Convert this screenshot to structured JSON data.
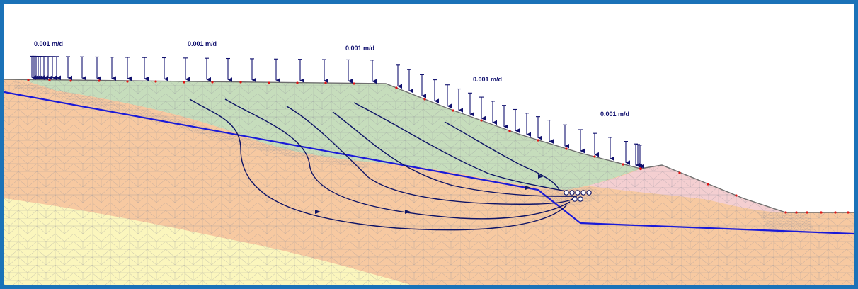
{
  "diagram": {
    "colors": {
      "frame": "#1a72b8",
      "soil_orange": "#f7c9a1",
      "soil_yellow": "#fbf6bd",
      "fill_green": "#c6ddbc",
      "fill_pink": "#f4cfd1",
      "mesh": "#8c8c96",
      "arrow": "#10106e",
      "water_table": "#1a1ad8",
      "flow_path": "#0e1466",
      "node_red": "#e01515"
    },
    "load_labels": [
      {
        "id": "load-1",
        "text": "0.001 m/d"
      },
      {
        "id": "load-2",
        "text": "0.001 m/d"
      },
      {
        "id": "load-3",
        "text": "0.001 m/d"
      },
      {
        "id": "load-4",
        "text": "0.001 m/d"
      },
      {
        "id": "load-5",
        "text": "0.001 m/d"
      }
    ]
  }
}
